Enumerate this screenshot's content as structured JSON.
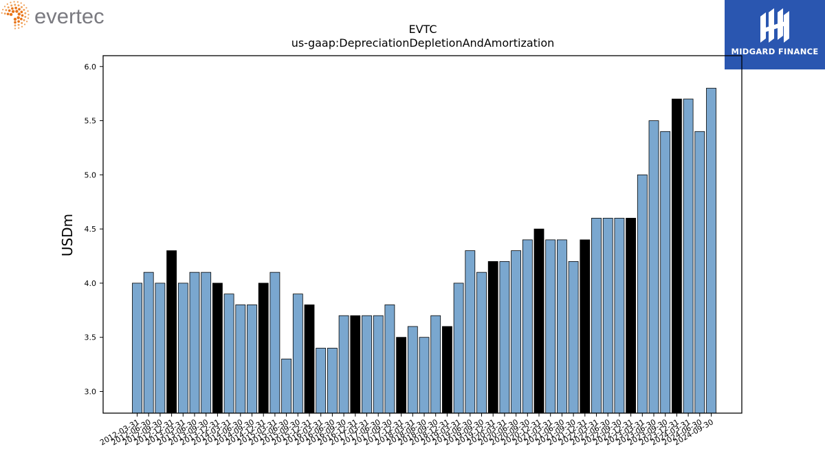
{
  "brand": {
    "left_logo_text": "evertec",
    "right_logo_text": "MIDGARD FINANCE"
  },
  "chart_data": {
    "type": "bar",
    "title": "EVTC",
    "subtitle": "us-gaap:DepreciationDepletionAndAmortization",
    "ylabel": "USDm",
    "xlabel": "",
    "ylim": [
      2.8,
      6.1
    ],
    "yticks": [
      3.0,
      3.5,
      4.0,
      4.5,
      5.0,
      5.5,
      6.0
    ],
    "grid": false,
    "colors": {
      "quarter": "#7aa7cf",
      "fiscal_year_end": "#000000"
    },
    "categories": [
      "2012-03-31",
      "2012-06-30",
      "2012-09-30",
      "2012-12-31",
      "2013-03-31",
      "2013-06-30",
      "2013-09-30",
      "2013-12-31",
      "2014-03-31",
      "2014-06-30",
      "2014-09-30",
      "2014-12-31",
      "2015-03-31",
      "2015-06-30",
      "2015-09-30",
      "2015-12-31",
      "2016-03-31",
      "2016-06-30",
      "2016-09-30",
      "2016-12-31",
      "2017-03-31",
      "2017-06-30",
      "2017-09-30",
      "2017-12-31",
      "2018-03-31",
      "2018-06-30",
      "2018-09-30",
      "2018-12-31",
      "2019-03-31",
      "2019-06-30",
      "2019-09-30",
      "2019-12-31",
      "2020-03-31",
      "2020-06-30",
      "2020-09-30",
      "2020-12-31",
      "2021-03-31",
      "2021-06-30",
      "2021-09-30",
      "2021-12-31",
      "2022-03-31",
      "2022-06-30",
      "2022-09-30",
      "2022-12-31",
      "2023-03-31",
      "2023-06-30",
      "2023-09-30",
      "2023-12-31",
      "2024-03-31",
      "2024-06-30",
      "2024-09-30"
    ],
    "values": [
      4.0,
      4.1,
      4.0,
      4.3,
      4.0,
      4.1,
      4.1,
      4.0,
      3.9,
      3.8,
      3.8,
      4.0,
      4.1,
      3.3,
      3.9,
      3.8,
      3.4,
      3.4,
      3.7,
      3.7,
      3.7,
      3.7,
      3.8,
      3.5,
      3.6,
      3.5,
      3.7,
      3.6,
      4.0,
      4.3,
      4.1,
      4.2,
      4.2,
      4.3,
      4.4,
      4.5,
      4.4,
      4.4,
      4.2,
      4.4,
      4.6,
      4.6,
      4.6,
      4.6,
      5.0,
      5.5,
      5.4,
      5.7,
      5.7,
      5.4,
      5.8
    ]
  }
}
